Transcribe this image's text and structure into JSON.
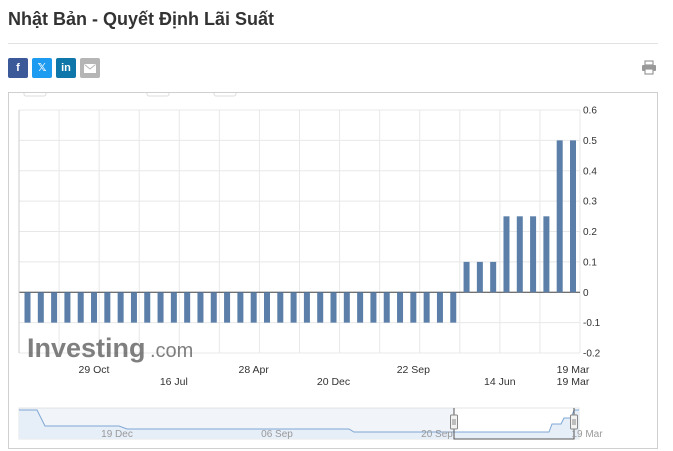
{
  "page": {
    "title": "Nhật Bản - Quyết Định Lãi Suất"
  },
  "share": {
    "facebook": "f",
    "twitter": "𝕏",
    "linkedin": "in",
    "email_icon": "envelope-icon",
    "print_icon": "printer-icon"
  },
  "watermark": {
    "brand": "Investing",
    "suffix": ".com"
  },
  "colors": {
    "bar": "#5b7fa8",
    "grid": "#e8e8e8",
    "navigator_line": "#7fa7d4",
    "navigator_fill": "#e6eef8"
  },
  "chart_data": {
    "type": "bar",
    "title": "",
    "xlabel": "",
    "ylabel": "",
    "ylim": [
      -0.2,
      0.6
    ],
    "yticks": [
      "0.6",
      "0.5",
      "0.4",
      "0.3",
      "0.2",
      "0.1",
      "0",
      "-0.1",
      "-0.2"
    ],
    "y_axis_position": "right",
    "grid": true,
    "values": [
      -0.1,
      -0.1,
      -0.1,
      -0.1,
      -0.1,
      -0.1,
      -0.1,
      -0.1,
      -0.1,
      -0.1,
      -0.1,
      -0.1,
      -0.1,
      -0.1,
      -0.1,
      -0.1,
      -0.1,
      -0.1,
      -0.1,
      -0.1,
      -0.1,
      -0.1,
      -0.1,
      -0.1,
      -0.1,
      -0.1,
      -0.1,
      -0.1,
      -0.1,
      -0.1,
      -0.1,
      -0.1,
      -0.1,
      0.1,
      0.1,
      0.1,
      0.25,
      0.25,
      0.25,
      0.25,
      0.5,
      0.5
    ],
    "x_labels_row1": [
      {
        "label": "29 Oct",
        "index": 5
      },
      {
        "label": "28 Apr",
        "index": 17
      },
      {
        "label": "22 Sep",
        "index": 29
      },
      {
        "label": "19 Mar",
        "index": 41
      }
    ],
    "x_labels_row2": [
      {
        "label": "16 Jul",
        "index": 11
      },
      {
        "label": "20 Dec",
        "index": 23
      },
      {
        "label": "14 Jun",
        "index": 35.5
      },
      {
        "label": "19 Mar",
        "index": 41
      }
    ],
    "navigator": {
      "labels": [
        "19 Dec",
        "06 Sep",
        "20 Sep",
        "19 Mar"
      ]
    }
  }
}
